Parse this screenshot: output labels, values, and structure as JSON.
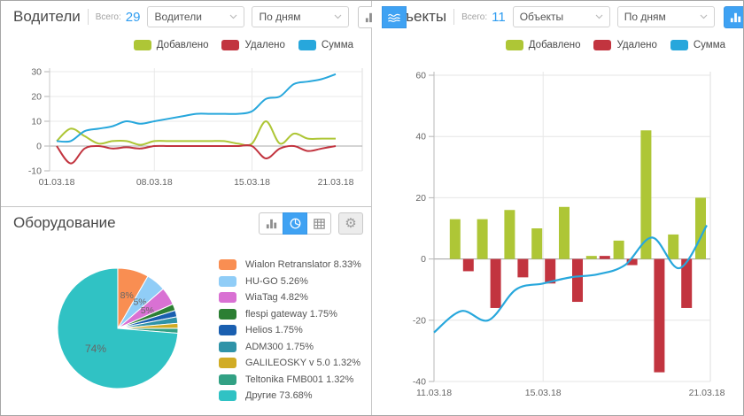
{
  "legend": {
    "added": "Добавлено",
    "removed": "Удалено",
    "sum": "Сумма"
  },
  "colors": {
    "added": "#aec636",
    "removed": "#c2343f",
    "sum": "#27a7dc",
    "accent_active": "#3fa2f3",
    "total_value": "#2e9cf0"
  },
  "panels": {
    "drivers": {
      "title": "Водители",
      "total_label": "Всего:",
      "total_value": "29",
      "select_type": "Водители",
      "select_period": "По дням",
      "toolbar": {
        "icons": [
          "bar-chart",
          "line-chart",
          "table"
        ],
        "active": "line-chart",
        "gear": "settings-gear"
      }
    },
    "objects": {
      "title": "Объекты",
      "total_label": "Всего:",
      "total_value": "11",
      "select_type": "Объекты",
      "select_period": "По дням",
      "toolbar": {
        "icons": [
          "bar-chart",
          "line-chart",
          "table"
        ],
        "active": "bar-chart",
        "gear": "settings-gear"
      }
    },
    "equipment": {
      "title": "Оборудование",
      "toolbar": {
        "icons": [
          "bar-chart",
          "pie-chart",
          "table"
        ],
        "active": "pie-chart",
        "gear": "settings-gear"
      }
    }
  },
  "chart_data": [
    {
      "id": "drivers",
      "type": "line",
      "categories": [
        "01.03.18",
        "02.03.18",
        "03.03.18",
        "04.03.18",
        "05.03.18",
        "06.03.18",
        "07.03.18",
        "08.03.18",
        "09.03.18",
        "10.03.18",
        "11.03.18",
        "12.03.18",
        "13.03.18",
        "14.03.18",
        "15.03.18",
        "16.03.18",
        "17.03.18",
        "18.03.18",
        "19.03.18",
        "20.03.18",
        "21.03.18"
      ],
      "x_tick_labels": [
        "01.03.18",
        "08.03.18",
        "15.03.18",
        "21.03.18"
      ],
      "x_gridlines": [
        "08.03.18",
        "15.03.18"
      ],
      "ylim": [
        -10,
        30
      ],
      "yticks": [
        -10,
        0,
        10,
        20,
        30
      ],
      "grid": true,
      "legend_position": "top",
      "series": [
        {
          "name": "Добавлено",
          "color": "#aec636",
          "values": [
            2,
            7,
            4,
            1,
            2,
            2,
            0.5,
            2,
            2,
            2,
            2,
            2,
            2,
            1,
            1,
            10,
            1,
            5,
            3,
            3,
            3
          ]
        },
        {
          "name": "Удалено",
          "color": "#c2343f",
          "values": [
            0,
            -7,
            -1,
            0,
            -1,
            -0.5,
            -1,
            0,
            0,
            0,
            0,
            0,
            0,
            0,
            0,
            -5,
            -1,
            0,
            -2,
            -1,
            0
          ]
        },
        {
          "name": "Сумма",
          "color": "#27a7dc",
          "values": [
            2,
            2,
            6,
            7,
            8,
            10,
            9,
            10,
            11,
            12,
            13,
            13,
            13,
            13,
            14,
            19,
            20,
            25,
            26,
            27,
            29
          ]
        }
      ]
    },
    {
      "id": "objects",
      "type": "bar",
      "categories": [
        "11.03.18",
        "12.03.18",
        "13.03.18",
        "14.03.18",
        "15.03.18",
        "16.03.18",
        "17.03.18",
        "18.03.18",
        "19.03.18",
        "20.03.18",
        "21.03.18"
      ],
      "x_tick_labels": [
        "11.03.18",
        "15.03.18",
        "21.03.18"
      ],
      "x_gridlines": [
        "15.03.18"
      ],
      "ylim": [
        -40,
        60
      ],
      "yticks": [
        -40,
        -20,
        0,
        20,
        40,
        60
      ],
      "grid": true,
      "legend_position": "top",
      "series": [
        {
          "name": "Добавлено",
          "type": "bar",
          "color": "#aec636",
          "values": [
            0,
            13,
            13,
            16,
            10,
            17,
            1,
            6,
            42,
            8,
            20
          ]
        },
        {
          "name": "Удалено",
          "type": "bar",
          "color": "#c2343f",
          "values": [
            0,
            -4,
            -16,
            -6,
            -8,
            -14,
            1,
            -2,
            -37,
            -16,
            0
          ]
        },
        {
          "name": "Сумма",
          "type": "line",
          "color": "#27a7dc",
          "values": [
            -24,
            -17,
            -20,
            -10,
            -8,
            -6,
            -5,
            -2,
            7,
            -3,
            11
          ]
        }
      ]
    },
    {
      "id": "equipment",
      "type": "pie",
      "slices": [
        {
          "label": "Wialon Retranslator",
          "pct": 8.33,
          "color": "#f98e52",
          "slice_label": "8%"
        },
        {
          "label": "HU-GO",
          "pct": 5.26,
          "color": "#90cdf7",
          "slice_label": "5%"
        },
        {
          "label": "WiaTag",
          "pct": 4.82,
          "color": "#d971d3",
          "slice_label": "5%"
        },
        {
          "label": "flespi gateway",
          "pct": 1.75,
          "color": "#2c7f33"
        },
        {
          "label": "Helios",
          "pct": 1.75,
          "color": "#1a5fb0"
        },
        {
          "label": "ADM300",
          "pct": 1.75,
          "color": "#2f93a8"
        },
        {
          "label": "GALILEOSKY v 5.0",
          "pct": 1.32,
          "color": "#d1ac25"
        },
        {
          "label": "Teltonika FMB001",
          "pct": 1.32,
          "color": "#32a184"
        },
        {
          "label": "Другие",
          "pct": 73.68,
          "color": "#30c2c4",
          "slice_label": "74%"
        }
      ]
    }
  ]
}
